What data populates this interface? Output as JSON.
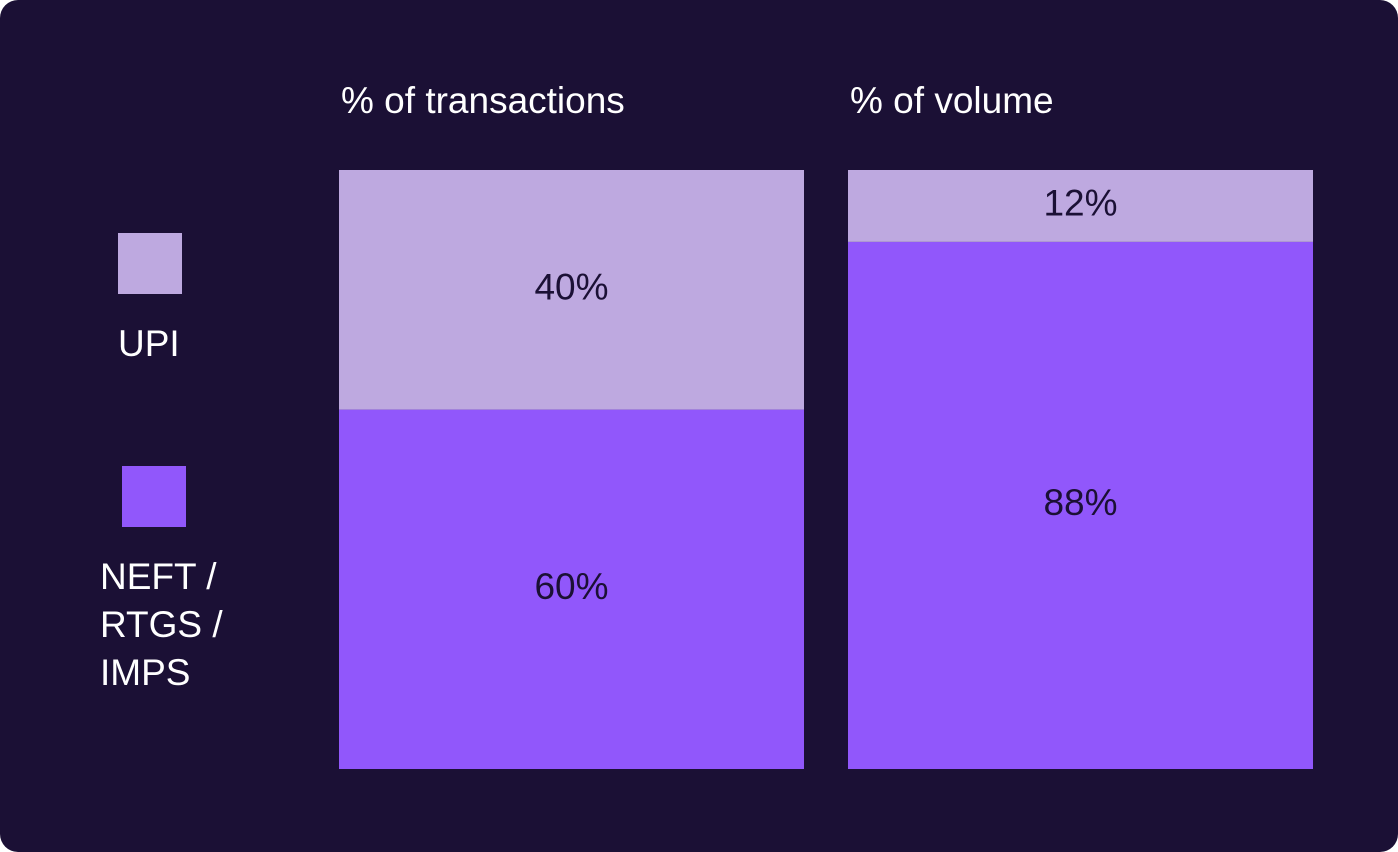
{
  "chart_data": {
    "type": "stacked_bar",
    "categories": [
      "% of transactions",
      "% of volume"
    ],
    "series": [
      {
        "name": "UPI",
        "color": "#bea9e0",
        "values": [
          40,
          12
        ],
        "value_labels": [
          "40%",
          "12%"
        ]
      },
      {
        "name": "NEFT / RTGS / IMPS",
        "color": "#9157fb",
        "values": [
          60,
          88
        ],
        "value_labels": [
          "60%",
          "88%"
        ]
      }
    ],
    "ylim": [
      0,
      100
    ]
  }
}
